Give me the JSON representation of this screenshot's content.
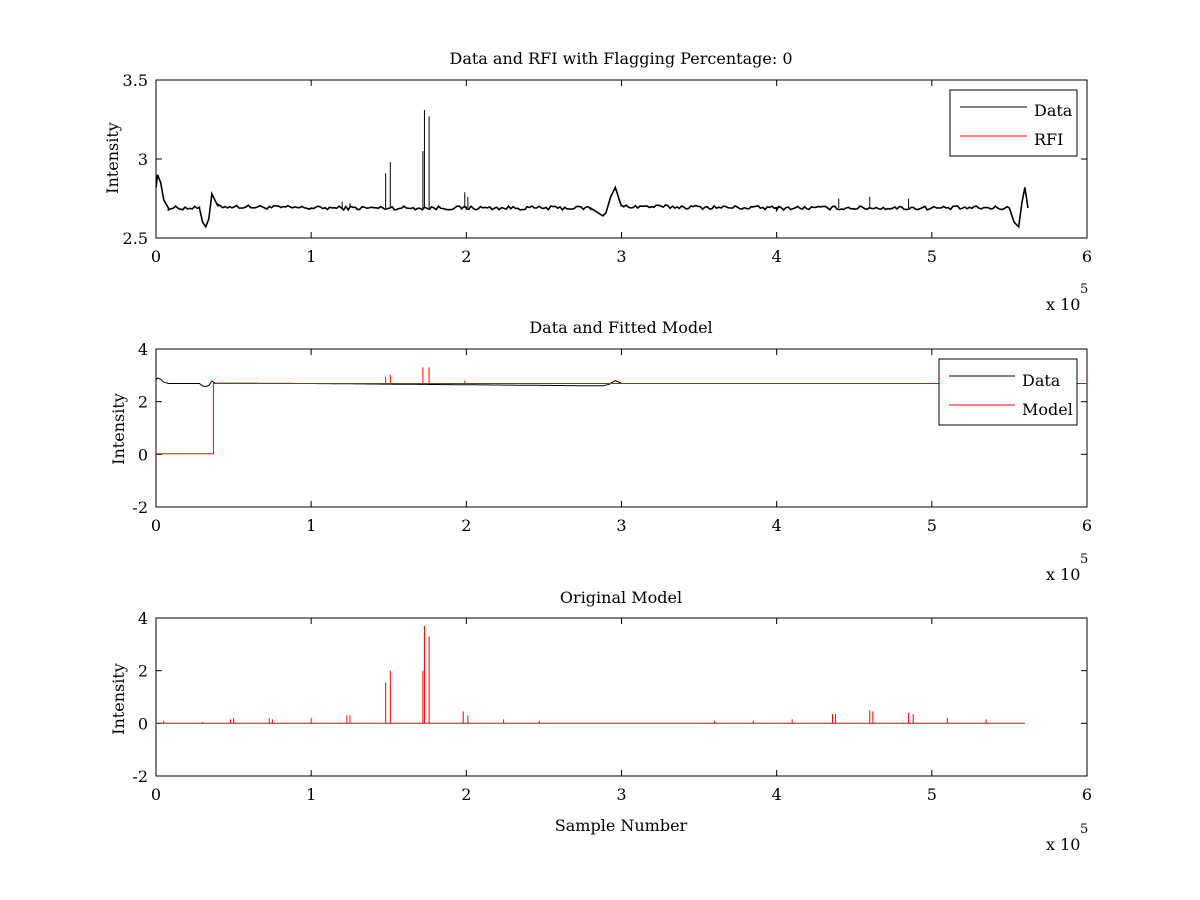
{
  "chart_data": [
    {
      "type": "line",
      "title": "Data and RFI with Flagging Percentage: 0",
      "xlabel": "",
      "ylabel": "Intensity",
      "xlim": [
        0,
        600000
      ],
      "ylim": [
        2.5,
        3.5
      ],
      "xticks": [
        0,
        1,
        2,
        3,
        4,
        5,
        6
      ],
      "yticks": [
        2.5,
        3,
        3.5
      ],
      "x_multiplier": {
        "prefix": "x 10",
        "exponent": "5"
      },
      "legend": {
        "position": "top-right",
        "entries": [
          {
            "name": "Data",
            "color": "#000000"
          },
          {
            "name": "RFI",
            "color": "#ff0000"
          }
        ]
      },
      "series": [
        {
          "name": "Data",
          "color": "#000000",
          "baseline": 2.69,
          "x": [
            0,
            1000,
            3000,
            5000,
            8000,
            28000,
            30000,
            32000,
            34000,
            36000,
            40000,
            100000,
            200000,
            280000,
            288000,
            290000,
            293000,
            296000,
            300000,
            400000,
            500000,
            550000,
            553000,
            556000,
            558000,
            560000,
            562000
          ],
          "y": [
            2.82,
            2.9,
            2.85,
            2.74,
            2.69,
            2.69,
            2.6,
            2.57,
            2.62,
            2.78,
            2.7,
            2.69,
            2.69,
            2.69,
            2.64,
            2.66,
            2.76,
            2.82,
            2.7,
            2.69,
            2.69,
            2.69,
            2.6,
            2.57,
            2.72,
            2.82,
            2.69
          ],
          "spikes": [
            [
              120000,
              2.73
            ],
            [
              125000,
              2.72
            ],
            [
              148000,
              2.91
            ],
            [
              151000,
              2.98
            ],
            [
              172000,
              3.05
            ],
            [
              173000,
              3.31
            ],
            [
              176000,
              3.27
            ],
            [
              199000,
              2.79
            ],
            [
              201000,
              2.76
            ],
            [
              440000,
              2.75
            ],
            [
              460000,
              2.76
            ],
            [
              485000,
              2.75
            ]
          ]
        },
        {
          "name": "RFI",
          "color": "#ff0000",
          "x": [],
          "y": []
        }
      ]
    },
    {
      "type": "line",
      "title": "Data and Fitted Model",
      "xlabel": "",
      "ylabel": "Intensity",
      "xlim": [
        0,
        600000
      ],
      "ylim": [
        -2,
        4
      ],
      "xticks": [
        0,
        1,
        2,
        3,
        4,
        5,
        6
      ],
      "yticks": [
        -2,
        0,
        2,
        4
      ],
      "x_multiplier": {
        "prefix": "x 10",
        "exponent": "5"
      },
      "legend": {
        "position": "top-right",
        "entries": [
          {
            "name": "Data",
            "color": "#000000"
          },
          {
            "name": "Model",
            "color": "#ff0000"
          }
        ]
      },
      "series": [
        {
          "name": "Data",
          "color": "#000000",
          "x": [
            0,
            1000,
            3000,
            5000,
            8000,
            28000,
            30000,
            32000,
            34000,
            36000,
            38000,
            100000,
            288000,
            292000,
            296000,
            300000
          ],
          "y": [
            2.82,
            2.9,
            2.85,
            2.74,
            2.69,
            2.69,
            2.6,
            2.57,
            2.62,
            2.78,
            2.7,
            2.69,
            2.6,
            2.66,
            2.8,
            2.7
          ],
          "spikes": []
        },
        {
          "name": "Model",
          "color": "#ff0000",
          "x": [
            0,
            37000,
            37000,
            560000,
            600000
          ],
          "y": [
            0.02,
            0.02,
            2.69,
            2.69,
            2.69
          ],
          "spikes": [
            [
              148000,
              2.95
            ],
            [
              151000,
              3.02
            ],
            [
              172000,
              3.3
            ],
            [
              176000,
              3.3
            ],
            [
              199000,
              2.8
            ]
          ]
        }
      ]
    },
    {
      "type": "line",
      "title": "Original Model",
      "xlabel": "Sample Number",
      "ylabel": "Intensity",
      "xlim": [
        0,
        600000
      ],
      "ylim": [
        -2,
        4
      ],
      "xticks": [
        0,
        1,
        2,
        3,
        4,
        5,
        6
      ],
      "yticks": [
        -2,
        0,
        2,
        4
      ],
      "x_multiplier": {
        "prefix": "x 10",
        "exponent": "5"
      },
      "series": [
        {
          "name": "Original Model",
          "color": "#ff0000",
          "x": [
            0,
            560000
          ],
          "y": [
            0,
            0
          ],
          "spikes": [
            [
              5000,
              0.1
            ],
            [
              30000,
              0.05
            ],
            [
              48000,
              0.15
            ],
            [
              50000,
              0.2
            ],
            [
              73000,
              0.2
            ],
            [
              75000,
              0.15
            ],
            [
              100000,
              0.2
            ],
            [
              123000,
              0.3
            ],
            [
              125000,
              0.3
            ],
            [
              148000,
              1.55
            ],
            [
              151000,
              2.0
            ],
            [
              172000,
              2.0
            ],
            [
              173000,
              3.7
            ],
            [
              176000,
              3.3
            ],
            [
              198000,
              0.45
            ],
            [
              201000,
              0.3
            ],
            [
              224000,
              0.15
            ],
            [
              247000,
              0.1
            ],
            [
              360000,
              0.1
            ],
            [
              385000,
              0.1
            ],
            [
              410000,
              0.15
            ],
            [
              436000,
              0.35
            ],
            [
              438000,
              0.35
            ],
            [
              460000,
              0.5
            ],
            [
              462000,
              0.45
            ],
            [
              485000,
              0.4
            ],
            [
              488000,
              0.35
            ],
            [
              510000,
              0.2
            ],
            [
              535000,
              0.15
            ]
          ]
        }
      ]
    }
  ]
}
